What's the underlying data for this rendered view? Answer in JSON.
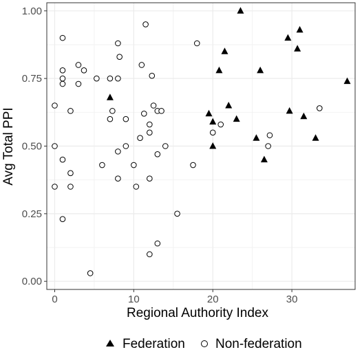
{
  "chart_data": {
    "type": "scatter",
    "xlabel": "Regional Authority Index",
    "ylabel": "Avg Total PPI",
    "xlim": [
      -1,
      38
    ],
    "ylim": [
      -0.03,
      1.03
    ],
    "x_ticks": [
      0,
      10,
      20,
      30
    ],
    "x_tick_labels": [
      "0",
      "10",
      "20",
      "30"
    ],
    "y_ticks": [
      0,
      0.25,
      0.5,
      0.75,
      1
    ],
    "y_tick_labels": [
      "0.00",
      "0.25",
      "0.50",
      "0.75",
      "1.00"
    ],
    "grid": true,
    "legend_position": "bottom",
    "series": [
      {
        "name": "Federation",
        "marker": "filled-triangle",
        "color": "#000000",
        "points": [
          [
            7,
            0.68
          ],
          [
            19.5,
            0.62
          ],
          [
            20,
            0.59
          ],
          [
            20,
            0.5
          ],
          [
            20.8,
            0.78
          ],
          [
            21.5,
            0.85
          ],
          [
            22,
            0.65
          ],
          [
            23,
            0.6
          ],
          [
            23.5,
            1.0
          ],
          [
            25.5,
            0.53
          ],
          [
            26,
            0.78
          ],
          [
            26.5,
            0.45
          ],
          [
            29.5,
            0.9
          ],
          [
            29.7,
            0.63
          ],
          [
            30.7,
            0.86
          ],
          [
            31,
            0.93
          ],
          [
            31.5,
            0.61
          ],
          [
            33,
            0.53
          ],
          [
            37,
            0.74
          ]
        ]
      },
      {
        "name": "Non-federation",
        "marker": "open-circle",
        "color": "#000000",
        "points": [
          [
            0,
            0.65
          ],
          [
            0,
            0.5
          ],
          [
            0,
            0.35
          ],
          [
            1,
            0.9
          ],
          [
            1,
            0.78
          ],
          [
            1,
            0.75
          ],
          [
            1,
            0.73
          ],
          [
            1,
            0.45
          ],
          [
            1,
            0.23
          ],
          [
            2,
            0.63
          ],
          [
            2,
            0.4
          ],
          [
            2,
            0.35
          ],
          [
            3,
            0.8
          ],
          [
            3,
            0.73
          ],
          [
            3.7,
            0.78
          ],
          [
            4.5,
            0.03
          ],
          [
            5.3,
            0.75
          ],
          [
            6,
            0.43
          ],
          [
            7,
            0.75
          ],
          [
            7,
            0.6
          ],
          [
            7.3,
            0.63
          ],
          [
            8,
            0.88
          ],
          [
            8,
            0.75
          ],
          [
            8,
            0.48
          ],
          [
            8,
            0.38
          ],
          [
            8.2,
            0.83
          ],
          [
            9,
            0.6
          ],
          [
            9,
            0.5
          ],
          [
            10,
            0.43
          ],
          [
            10.3,
            0.35
          ],
          [
            10.8,
            0.53
          ],
          [
            11,
            0.8
          ],
          [
            11.3,
            0.62
          ],
          [
            11.5,
            0.95
          ],
          [
            12,
            0.58
          ],
          [
            12,
            0.55
          ],
          [
            12,
            0.38
          ],
          [
            12,
            0.1
          ],
          [
            12.3,
            0.76
          ],
          [
            12.5,
            0.65
          ],
          [
            13,
            0.63
          ],
          [
            13,
            0.47
          ],
          [
            13,
            0.14
          ],
          [
            13.5,
            0.63
          ],
          [
            14,
            0.5
          ],
          [
            15.5,
            0.25
          ],
          [
            17.5,
            0.43
          ],
          [
            18,
            0.88
          ],
          [
            20,
            0.55
          ],
          [
            21,
            0.58
          ],
          [
            27,
            0.5
          ],
          [
            27.2,
            0.54
          ],
          [
            33.5,
            0.64
          ]
        ]
      }
    ]
  }
}
